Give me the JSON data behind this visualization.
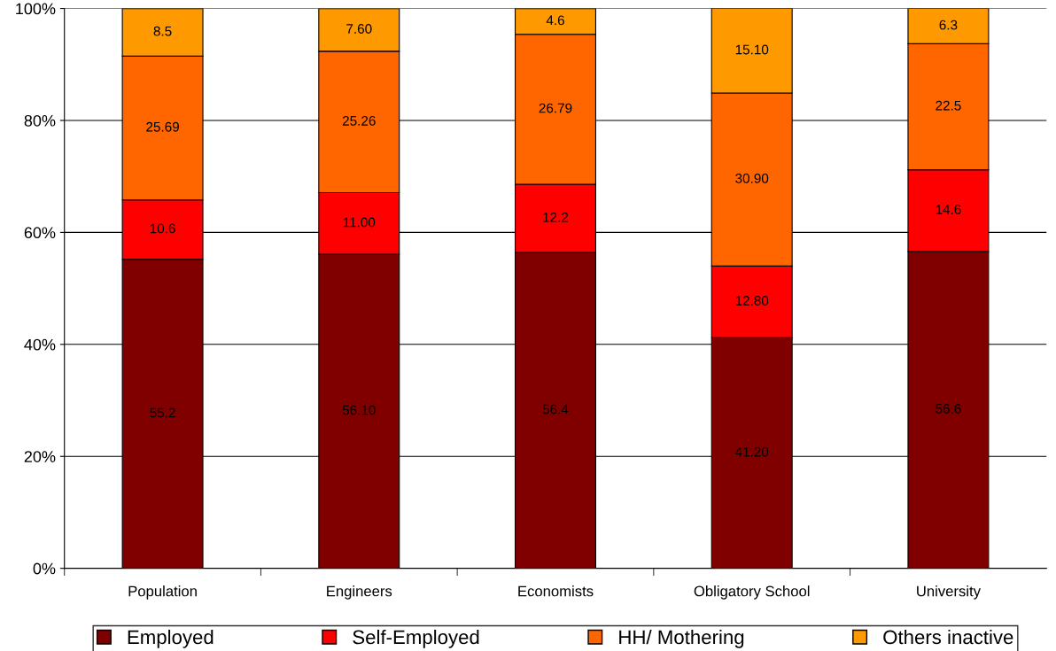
{
  "chart_data": {
    "type": "bar",
    "stacked": true,
    "categories": [
      "Population",
      "Engineers",
      "Economists",
      "Obligatory School",
      "University"
    ],
    "series": [
      {
        "name": "Employed",
        "color": "#800000",
        "values": [
          55.2,
          56.1,
          56.4,
          41.2,
          56.6
        ],
        "value_labels": [
          "55.2",
          "56.10",
          "56.4",
          "41.20",
          "56.6"
        ]
      },
      {
        "name": "Self-Employed",
        "color": "#ff0000",
        "values": [
          10.6,
          11.0,
          12.2,
          12.8,
          14.6
        ],
        "value_labels": [
          "10.6",
          "11.00",
          "12.2",
          "12.80",
          "14.6"
        ]
      },
      {
        "name": "HH/ Mothering",
        "color": "#ff6600",
        "values": [
          25.69,
          25.26,
          26.79,
          30.9,
          22.5
        ],
        "value_labels": [
          "25.69",
          "25.26",
          "26.79",
          "30.90",
          "22.5"
        ]
      },
      {
        "name": "Others inactive",
        "color": "#ff9900",
        "values": [
          8.5,
          7.6,
          4.6,
          15.1,
          6.3
        ],
        "value_labels": [
          "8.5",
          "7.60",
          "4.6",
          "15.10",
          "6.3"
        ]
      }
    ],
    "ylim": [
      0,
      100
    ],
    "yticks": [
      {
        "value": 0,
        "label": "0%"
      },
      {
        "value": 20,
        "label": "20%"
      },
      {
        "value": 40,
        "label": "40%"
      },
      {
        "value": 60,
        "label": "60%"
      },
      {
        "value": 80,
        "label": "80%"
      },
      {
        "value": 100,
        "label": "100%"
      }
    ],
    "grid": "y",
    "legend": "bottom"
  }
}
